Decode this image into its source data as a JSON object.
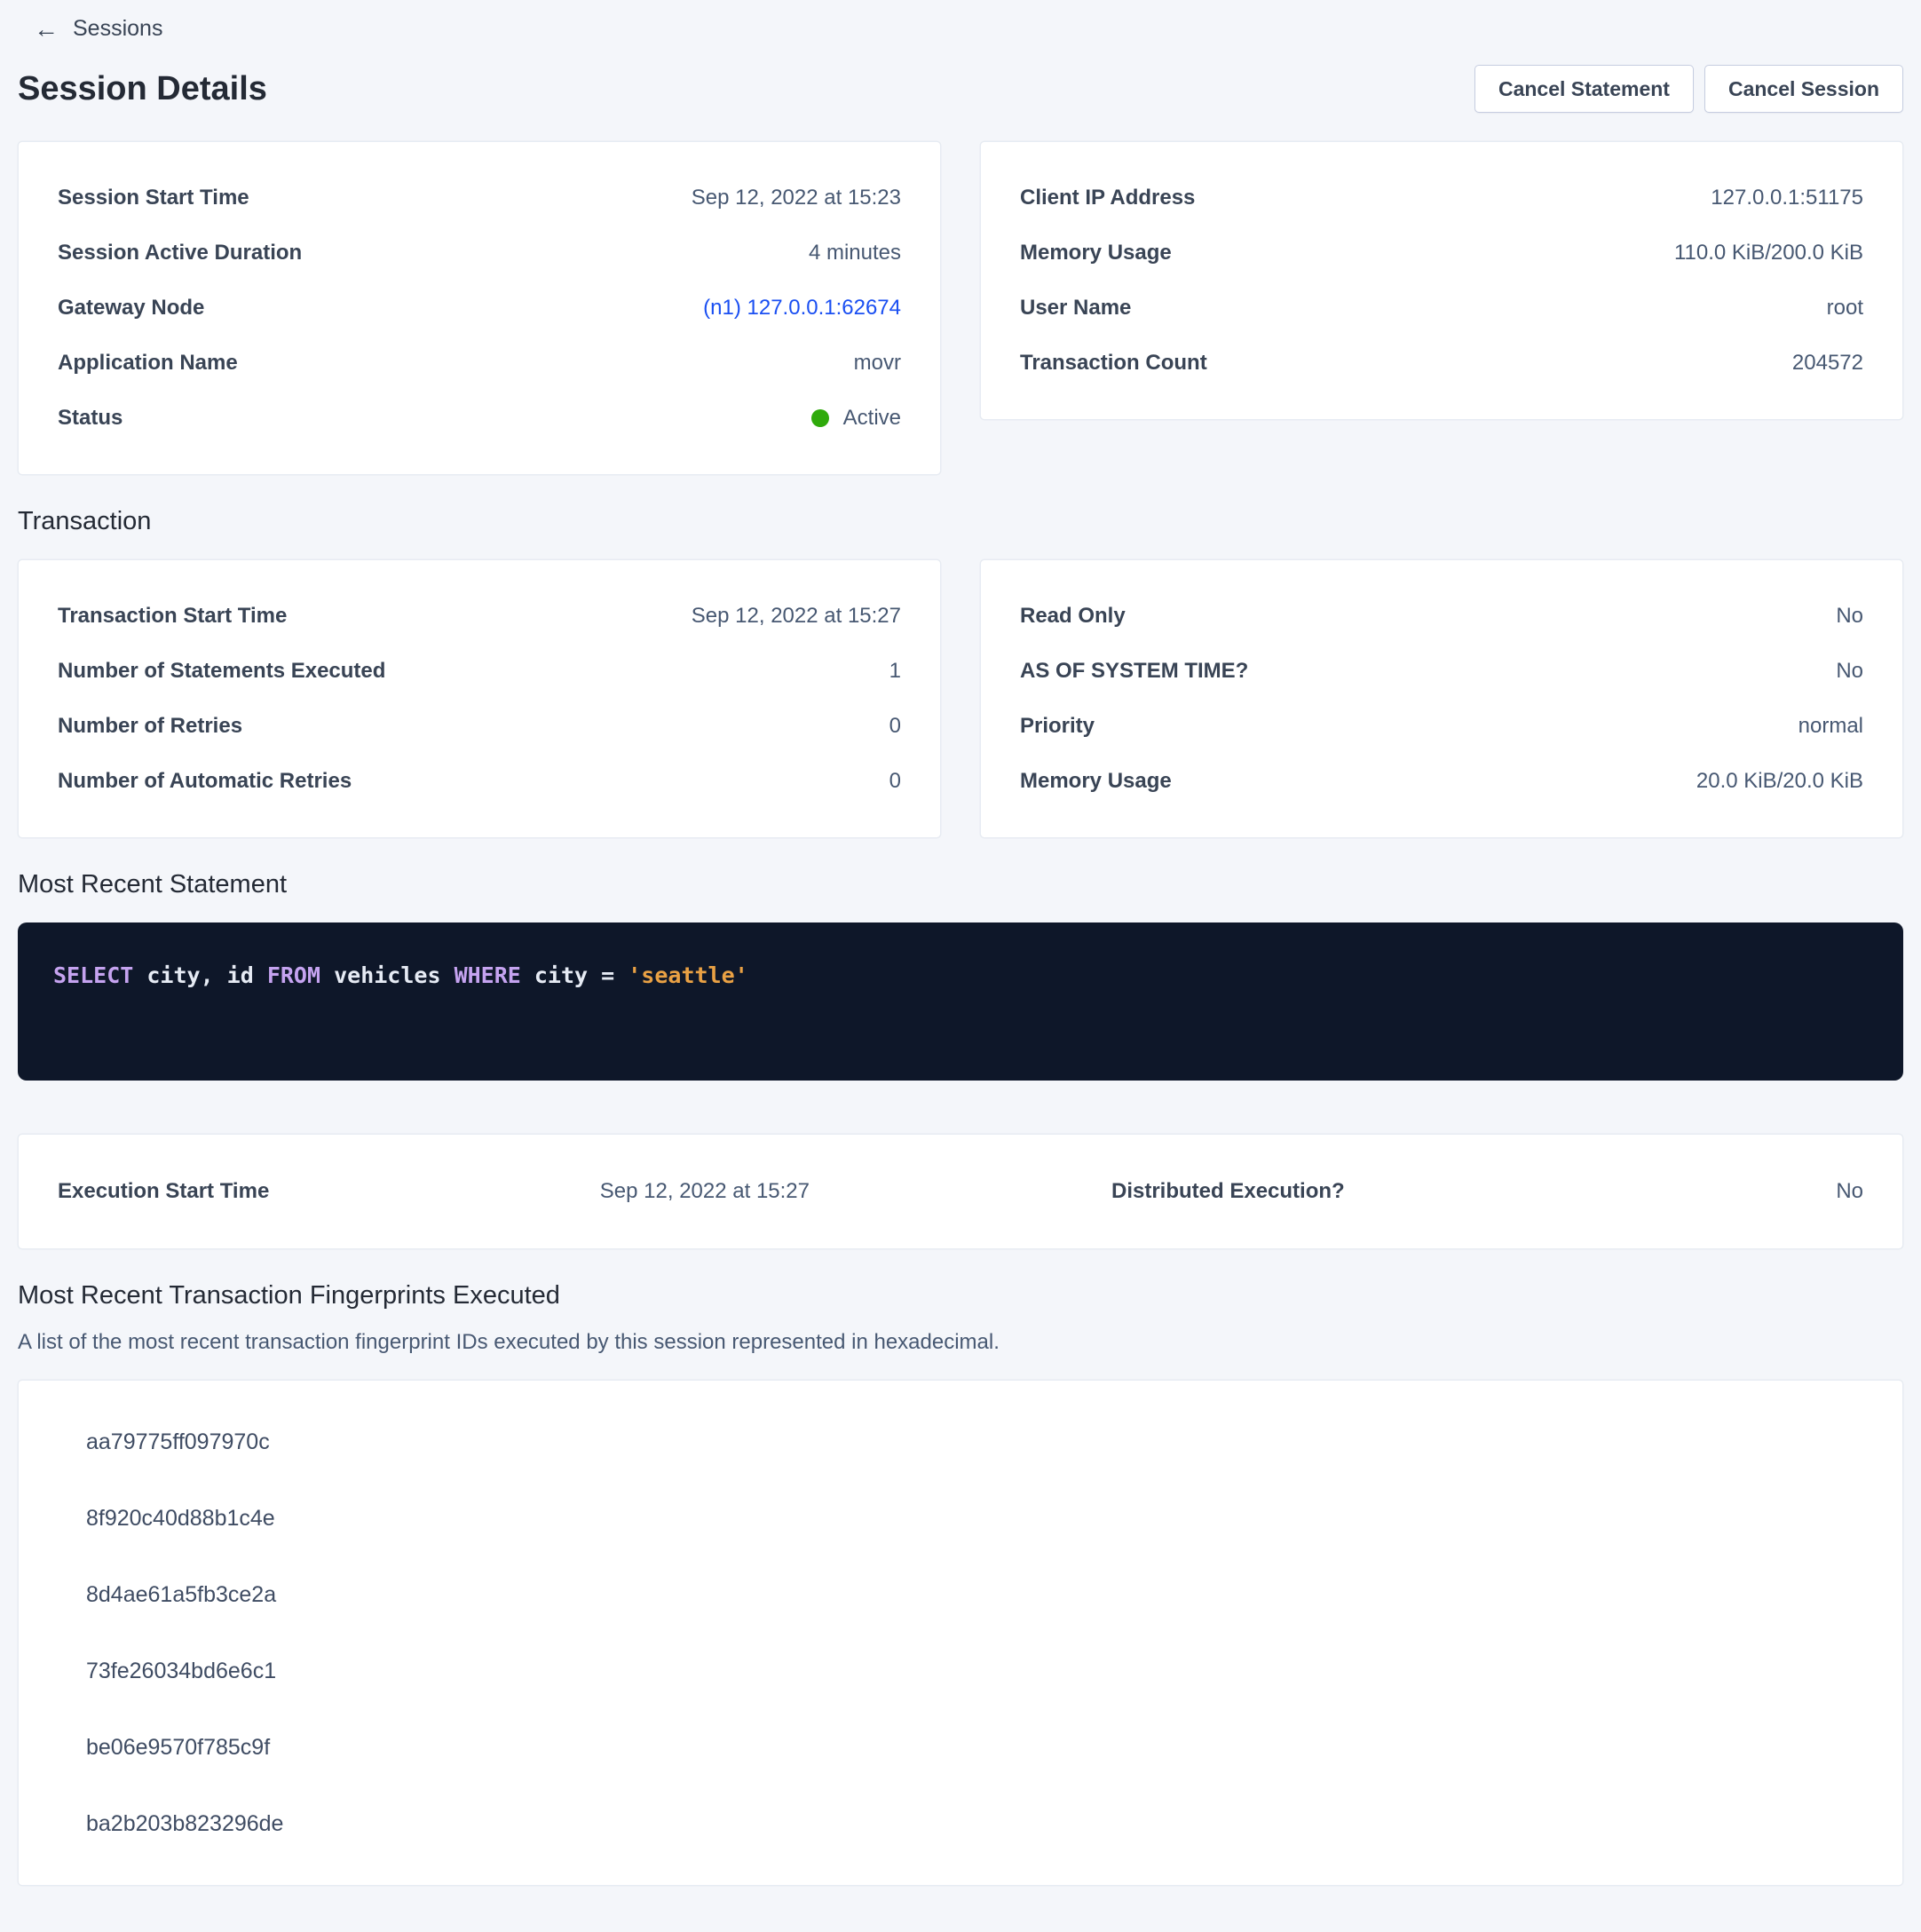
{
  "page": {
    "back_label": "Sessions",
    "title": "Session Details"
  },
  "actions": {
    "cancel_statement": "Cancel Statement",
    "cancel_session": "Cancel Session"
  },
  "session_left": {
    "rows": [
      {
        "label": "Session Start Time",
        "value": "Sep 12, 2022 at 15:23"
      },
      {
        "label": "Session Active Duration",
        "value": "4 minutes"
      },
      {
        "label": "Gateway Node",
        "value": "(n1) 127.0.0.1:62674"
      },
      {
        "label": "Application Name",
        "value": "movr"
      },
      {
        "label": "Status",
        "value": "Active"
      }
    ]
  },
  "session_right": {
    "rows": [
      {
        "label": "Client IP Address",
        "value": "127.0.0.1:51175"
      },
      {
        "label": "Memory Usage",
        "value": "110.0 KiB/200.0 KiB"
      },
      {
        "label": "User Name",
        "value": "root"
      },
      {
        "label": "Transaction Count",
        "value": "204572"
      }
    ]
  },
  "transaction": {
    "title": "Transaction",
    "left_rows": [
      {
        "label": "Transaction Start Time",
        "value": "Sep 12, 2022 at 15:27"
      },
      {
        "label": "Number of Statements Executed",
        "value": "1"
      },
      {
        "label": "Number of Retries",
        "value": "0"
      },
      {
        "label": "Number of Automatic Retries",
        "value": "0"
      }
    ],
    "right_rows": [
      {
        "label": "Read Only",
        "value": "No"
      },
      {
        "label": "AS OF SYSTEM TIME?",
        "value": "No"
      },
      {
        "label": "Priority",
        "value": "normal"
      },
      {
        "label": "Memory Usage",
        "value": "20.0 KiB/20.0 KiB"
      }
    ]
  },
  "statement": {
    "title": "Most Recent Statement",
    "sql_text": "SELECT city, id FROM vehicles WHERE city = 'seattle'",
    "tokens": [
      {
        "text": "SELECT",
        "type": "keyword"
      },
      {
        "text": " city, id ",
        "type": "plain"
      },
      {
        "text": "FROM",
        "type": "keyword"
      },
      {
        "text": " vehicles ",
        "type": "plain"
      },
      {
        "text": "WHERE",
        "type": "keyword"
      },
      {
        "text": " city = ",
        "type": "plain"
      },
      {
        "text": "'seattle'",
        "type": "string"
      }
    ]
  },
  "execution": {
    "start_label": "Execution Start Time",
    "start_value": "Sep 12, 2022 at 15:27",
    "distributed_label": "Distributed Execution?",
    "distributed_value": "No"
  },
  "fingerprints": {
    "title": "Most Recent Transaction Fingerprints Executed",
    "description": "A list of the most recent transaction fingerprint IDs executed by this session represented in hexadecimal.",
    "ids": [
      "aa79775ff097970c",
      "8f920c40d88b1c4e",
      "8d4ae61a5fb3ce2a",
      "73fe26034bd6e6c1",
      "be06e9570f785c9f",
      "ba2b203b823296de"
    ]
  },
  "status": {
    "active_label": "Active"
  },
  "colors": {
    "page_background": "#f4f6fa",
    "link_blue": "#1a4ff2",
    "status_active_green": "#2faa0b",
    "code_background": "#0e1729",
    "code_keyword": "#c5a3f0",
    "code_plain": "#e6ebf4",
    "code_string": "#e9a144"
  }
}
